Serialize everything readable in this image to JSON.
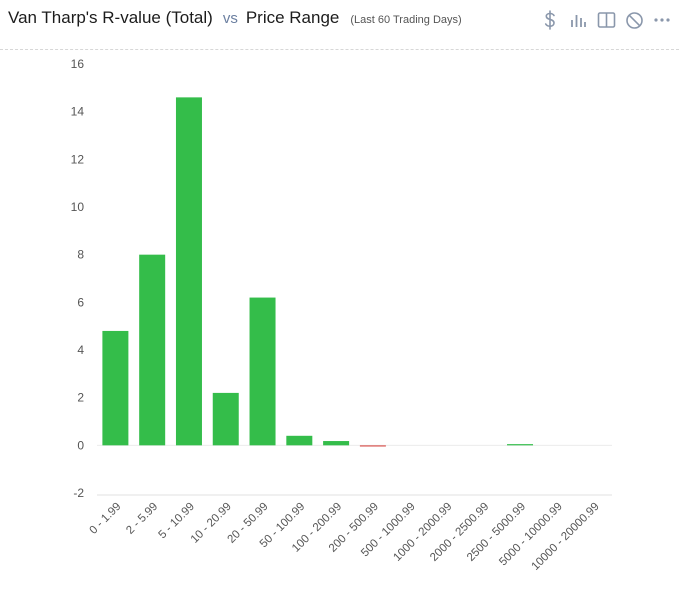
{
  "header": {
    "title": "Van Tharp's R-value (Total)",
    "vs": "vs",
    "subject": "Price Range",
    "period": "(Last 60 Trading Days)"
  },
  "toolbar": {
    "icons": [
      "dollar-icon",
      "bar-chart-icon",
      "split-view-icon",
      "disable-icon",
      "more-options-icon"
    ]
  },
  "colors": {
    "positive": "#34bd4a",
    "negative": "#d9534f",
    "axis_text": "#555555",
    "icon": "#8a97ab"
  },
  "chart_data": {
    "type": "bar",
    "title": "",
    "xlabel": "",
    "ylabel": "",
    "categories": [
      "0 - 1.99",
      "2 - 5.99",
      "5 - 10.99",
      "10 - 20.99",
      "20 - 50.99",
      "50 - 100.99",
      "100 - 200.99",
      "200 - 500.99",
      "500 - 1000.99",
      "1000 - 2000.99",
      "2000 - 2500.99",
      "2500 - 5000.99",
      "5000 - 10000.99",
      "10000 - 20000.99"
    ],
    "values": [
      4.8,
      8.0,
      14.6,
      2.2,
      6.2,
      0.4,
      0.18,
      -0.05,
      0,
      0,
      0,
      0.04,
      0,
      0
    ],
    "ylim": [
      -2,
      16
    ],
    "yticks": [
      16,
      14,
      12,
      10,
      8,
      6,
      4,
      2,
      0,
      -2
    ],
    "grid": false,
    "legend": "none"
  }
}
